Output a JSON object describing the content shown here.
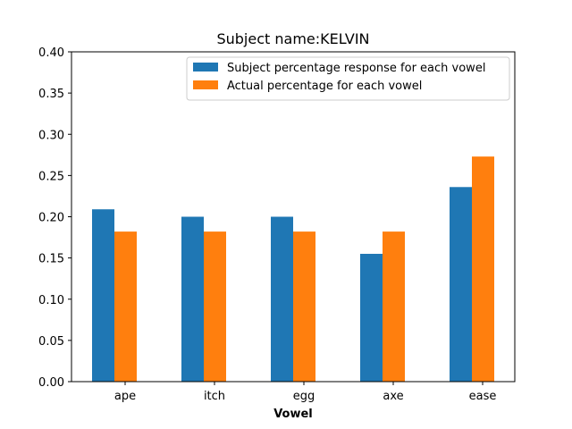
{
  "chart_data": {
    "type": "bar",
    "title": "Subject name:KELVIN",
    "xlabel": "Vowel",
    "ylabel": "",
    "categories": [
      "ape",
      "itch",
      "egg",
      "axe",
      "ease"
    ],
    "series": [
      {
        "name": "Subject percentage response for each vowel",
        "color": "#1f77b4",
        "values": [
          0.209,
          0.2,
          0.2,
          0.155,
          0.236
        ]
      },
      {
        "name": "Actual percentage for each vowel",
        "color": "#ff7f0e",
        "values": [
          0.182,
          0.182,
          0.182,
          0.182,
          0.273
        ]
      }
    ],
    "ylim": [
      0,
      0.4
    ],
    "yticks": [
      "0.00",
      "0.05",
      "0.10",
      "0.15",
      "0.20",
      "0.25",
      "0.30",
      "0.35",
      "0.40"
    ],
    "grid": false,
    "legend_position": "top-right"
  }
}
